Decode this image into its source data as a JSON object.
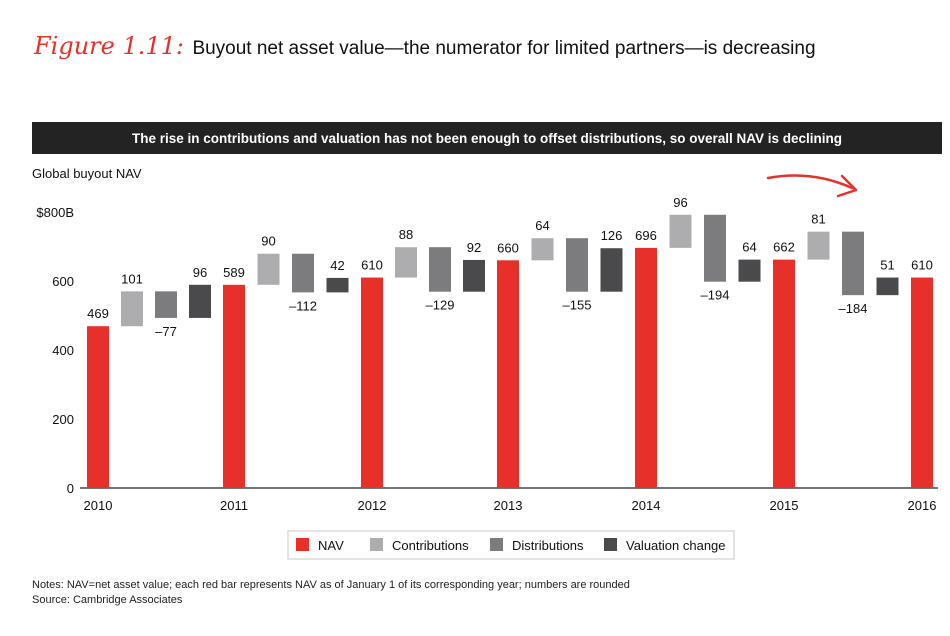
{
  "header": {
    "figure_label": "Figure 1.11:",
    "title": "Buyout net asset value—the numerator for limited partners—is decreasing"
  },
  "banner": "The rise in contributions and valuation has not been enough to offset distributions, so overall NAV is declining",
  "notes": {
    "line1": "Notes: NAV=net asset value; each red bar represents NAV as of January 1 of its corresponding year; numbers are rounded",
    "line2": "Source: Cambridge Associates"
  },
  "colors": {
    "nav": "#e8302a",
    "contributions": "#adadaf",
    "distributions": "#7c7c7e",
    "valuation": "#4a4a4c"
  },
  "chart_data": {
    "type": "waterfall",
    "ylabel": "Global buyout NAV",
    "ylim": [
      0,
      800
    ],
    "y_ticks": [
      {
        "value": 0,
        "label": "0"
      },
      {
        "value": 200,
        "label": "200"
      },
      {
        "value": 400,
        "label": "400"
      },
      {
        "value": 600,
        "label": "600"
      },
      {
        "value": 800,
        "label": "$800B"
      }
    ],
    "year_labels": [
      "2010",
      "2011",
      "2012",
      "2013",
      "2014",
      "2015",
      "2016"
    ],
    "legend": [
      {
        "key": "nav",
        "label": "NAV"
      },
      {
        "key": "contributions",
        "label": "Contributions"
      },
      {
        "key": "distributions",
        "label": "Distributions"
      },
      {
        "key": "valuation",
        "label": "Valuation change"
      }
    ],
    "nav": [
      469,
      589,
      610,
      660,
      696,
      662,
      610
    ],
    "periods": [
      {
        "contributions": 101,
        "distributions": -77,
        "valuation": 96
      },
      {
        "contributions": 90,
        "distributions": -112,
        "valuation": 42
      },
      {
        "contributions": 88,
        "distributions": -129,
        "valuation": 92
      },
      {
        "contributions": 64,
        "distributions": -155,
        "valuation": 126
      },
      {
        "contributions": 96,
        "distributions": -194,
        "valuation": 64
      },
      {
        "contributions": 81,
        "distributions": -184,
        "valuation": 51
      }
    ],
    "nav_labels": [
      "469",
      "589",
      "610",
      "660",
      "696",
      "662",
      "610"
    ],
    "period_labels": [
      {
        "contributions": "101",
        "distributions": "–77",
        "valuation": "96"
      },
      {
        "contributions": "90",
        "distributions": "–112",
        "valuation": "42"
      },
      {
        "contributions": "88",
        "distributions": "–129",
        "valuation": "92"
      },
      {
        "contributions": "64",
        "distributions": "–155",
        "valuation": "126"
      },
      {
        "contributions": "96",
        "distributions": "–194",
        "valuation": "64"
      },
      {
        "contributions": "81",
        "distributions": "–184",
        "valuation": "51"
      }
    ]
  }
}
